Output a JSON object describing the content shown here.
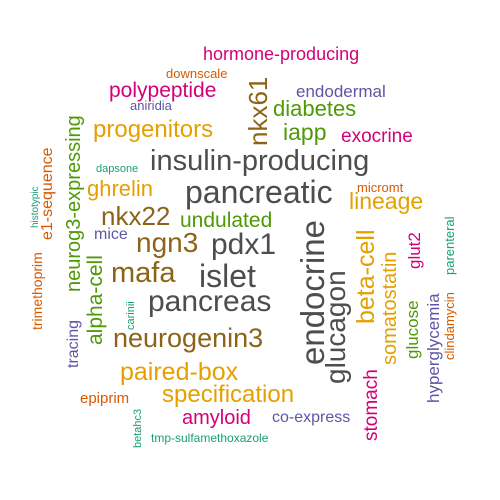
{
  "colors": {
    "gray": "#4d4d4d",
    "brown": "#8c6418",
    "gold": "#e5a000",
    "green": "#4e9a06",
    "purple": "#5e55a6",
    "magenta": "#d4007a",
    "orange": "#d85a00",
    "teal": "#1b9e77"
  },
  "words": [
    {
      "text": "hormone-producing",
      "color": "magenta"
    },
    {
      "text": "downscale",
      "color": "orange"
    },
    {
      "text": "polypeptide",
      "color": "magenta"
    },
    {
      "text": "nkx61",
      "color": "brown"
    },
    {
      "text": "endodermal",
      "color": "purple"
    },
    {
      "text": "aniridia",
      "color": "purple"
    },
    {
      "text": "diabetes",
      "color": "green"
    },
    {
      "text": "neurog3-expressing",
      "color": "green"
    },
    {
      "text": "progenitors",
      "color": "gold"
    },
    {
      "text": "iapp",
      "color": "green"
    },
    {
      "text": "exocrine",
      "color": "magenta"
    },
    {
      "text": "e1-sequence",
      "color": "orange"
    },
    {
      "text": "dapsone",
      "color": "teal"
    },
    {
      "text": "insulin-producing",
      "color": "gray"
    },
    {
      "text": "histotypic",
      "color": "teal"
    },
    {
      "text": "ghrelin",
      "color": "gold"
    },
    {
      "text": "micromt",
      "color": "orange"
    },
    {
      "text": "pancreatic",
      "color": "gray"
    },
    {
      "text": "lineage",
      "color": "gold"
    },
    {
      "text": "nkx22",
      "color": "brown"
    },
    {
      "text": "parenteral",
      "color": "teal"
    },
    {
      "text": "trimethoprim",
      "color": "orange"
    },
    {
      "text": "undulated",
      "color": "green"
    },
    {
      "text": "endocrine",
      "color": "gray"
    },
    {
      "text": "mice",
      "color": "purple"
    },
    {
      "text": "ngn3",
      "color": "brown"
    },
    {
      "text": "pdx1",
      "color": "gray"
    },
    {
      "text": "glut2",
      "color": "magenta"
    },
    {
      "text": "beta-cell",
      "color": "gold"
    },
    {
      "text": "alpha-cell",
      "color": "green"
    },
    {
      "text": "glucagon",
      "color": "gray"
    },
    {
      "text": "mafa",
      "color": "brown"
    },
    {
      "text": "islet",
      "color": "gray"
    },
    {
      "text": "somatostatin",
      "color": "gold"
    },
    {
      "text": "carinii",
      "color": "teal"
    },
    {
      "text": "pancreas",
      "color": "gray"
    },
    {
      "text": "hyperglycemia",
      "color": "purple"
    },
    {
      "text": "glucose",
      "color": "green"
    },
    {
      "text": "clindamycin",
      "color": "orange"
    },
    {
      "text": "neurogenin3",
      "color": "brown"
    },
    {
      "text": "tracing",
      "color": "purple"
    },
    {
      "text": "stomach",
      "color": "magenta"
    },
    {
      "text": "paired-box",
      "color": "gold"
    },
    {
      "text": "specification",
      "color": "gold"
    },
    {
      "text": "epiprim",
      "color": "orange"
    },
    {
      "text": "amyloid",
      "color": "magenta"
    },
    {
      "text": "co-express",
      "color": "purple"
    },
    {
      "text": "betahc3",
      "color": "teal"
    },
    {
      "text": "tmp-sulfamethoxazole",
      "color": "teal"
    }
  ]
}
